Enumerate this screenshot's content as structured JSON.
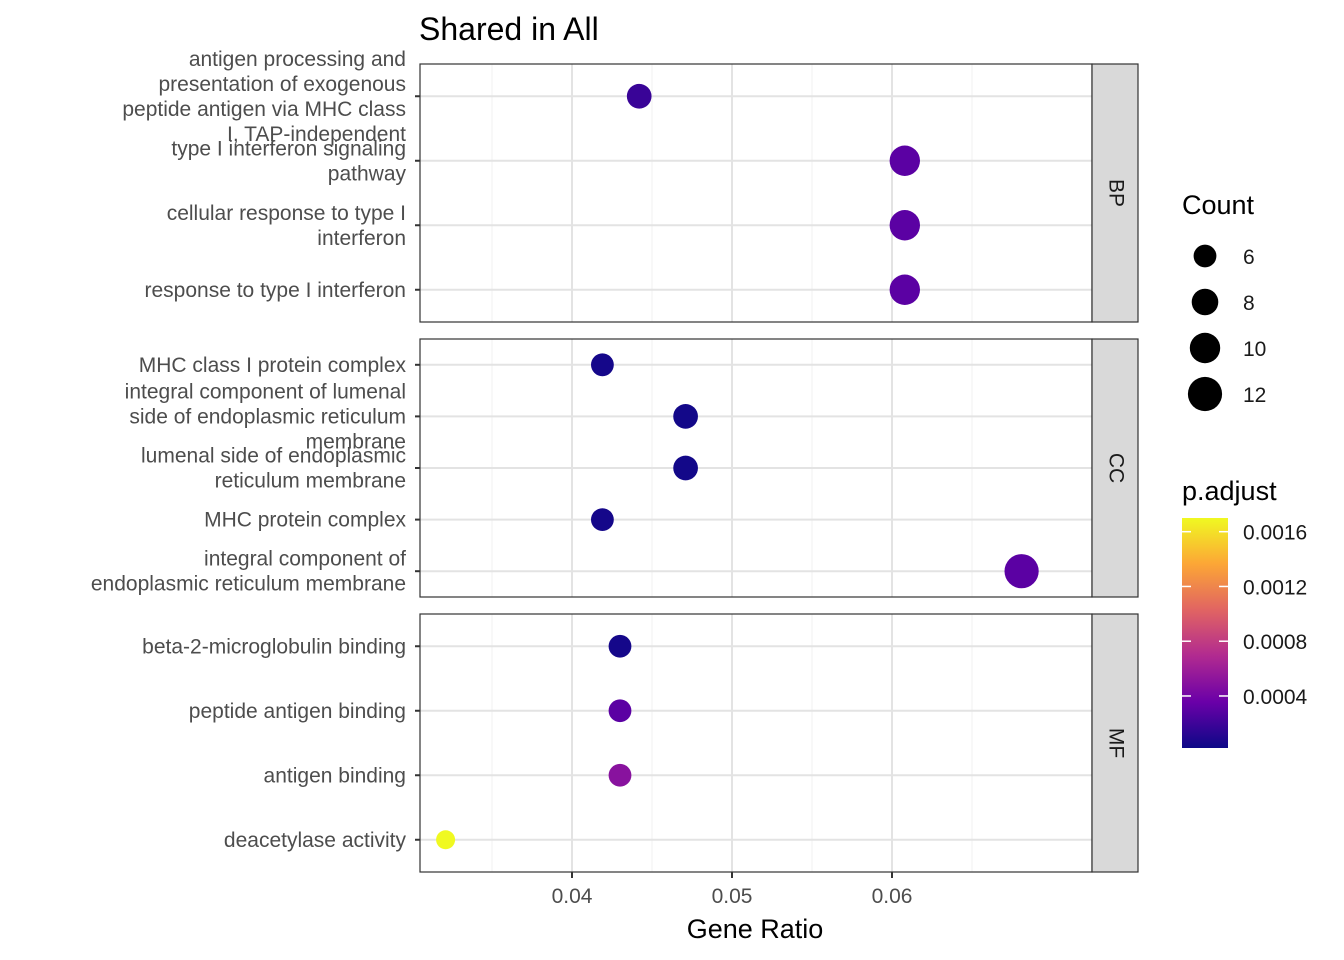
{
  "chart_data": {
    "type": "scatter",
    "title": "Shared in All",
    "xlabel": "Gene Ratio",
    "ylabel": "",
    "xlim": [
      0.0305,
      0.0725
    ],
    "x_ticks": [
      0.04,
      0.05,
      0.06
    ],
    "x_tick_labels": [
      "0.04",
      "0.05",
      "0.06"
    ],
    "grid": true,
    "facets": [
      {
        "label": "BP",
        "terms": [
          {
            "label": "antigen processing and\npresentation of exogenous\npeptide antigen via MHC class\nI, TAP-independent",
            "x": 0.0442,
            "count": 7,
            "p_adjust": 0.00018
          },
          {
            "label": "type I interferon signaling\npathway",
            "x": 0.0608,
            "count": 10,
            "p_adjust": 0.0003
          },
          {
            "label": "cellular response to type I\ninterferon",
            "x": 0.0608,
            "count": 10,
            "p_adjust": 0.0003
          },
          {
            "label": "response to type I interferon",
            "x": 0.0608,
            "count": 10,
            "p_adjust": 0.0003
          }
        ]
      },
      {
        "label": "CC",
        "terms": [
          {
            "label": "MHC class I protein complex",
            "x": 0.0419,
            "count": 6,
            "p_adjust": 5e-05
          },
          {
            "label": "integral component of lumenal\nside of endoplasmic reticulum\nmembrane",
            "x": 0.0471,
            "count": 7,
            "p_adjust": 4e-05
          },
          {
            "label": "lumenal side of endoplasmic\nreticulum membrane",
            "x": 0.0471,
            "count": 7,
            "p_adjust": 4e-05
          },
          {
            "label": "MHC protein complex",
            "x": 0.0419,
            "count": 6,
            "p_adjust": 5e-05
          },
          {
            "label": "integral component of\nendoplasmic reticulum membrane",
            "x": 0.0681,
            "count": 12,
            "p_adjust": 0.0003
          }
        ]
      },
      {
        "label": "MF",
        "terms": [
          {
            "label": "beta-2-microglobulin binding",
            "x": 0.043,
            "count": 6,
            "p_adjust": 5e-05
          },
          {
            "label": "peptide antigen binding",
            "x": 0.043,
            "count": 6,
            "p_adjust": 0.0003
          },
          {
            "label": "antigen binding",
            "x": 0.043,
            "count": 6,
            "p_adjust": 0.0005
          },
          {
            "label": "deacetylase activity",
            "x": 0.0321,
            "count": 4,
            "p_adjust": 0.0017
          }
        ]
      }
    ],
    "size_legend": {
      "title": "Count",
      "values": [
        6,
        8,
        10,
        12
      ],
      "labels": [
        "6",
        "8",
        "10",
        "12"
      ]
    },
    "color_legend": {
      "title": "p.adjust",
      "range": [
        2e-05,
        0.0017
      ],
      "ticks": [
        0.0004,
        0.0008,
        0.0012,
        0.0016
      ],
      "tick_labels": [
        "0.0004",
        "0.0008",
        "0.0012",
        "0.0016"
      ],
      "colormap": [
        "#0d0887",
        "#6a00a8",
        "#b12a90",
        "#e16462",
        "#fca636",
        "#f0f921"
      ]
    }
  }
}
